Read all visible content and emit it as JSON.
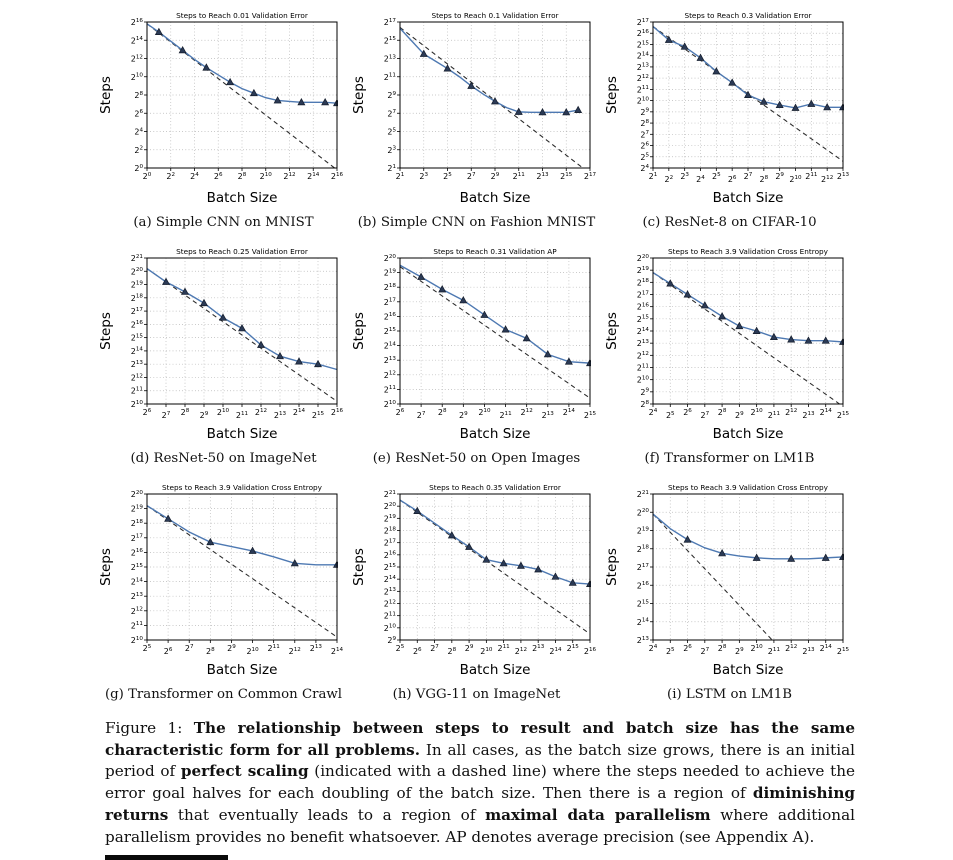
{
  "page": {
    "background": "#ffffff"
  },
  "colors": {
    "data_line": "#4e79b2",
    "marker_fill": "#2b3a55",
    "dashed_line": "#2a2a2a",
    "grid": "#999999",
    "text": "#000000"
  },
  "chart_data": [
    {
      "id": "a",
      "type": "line",
      "title": "Steps to Reach 0.01 Validation Error",
      "subcaption": "(a) Simple CNN on MNIST",
      "xlabel": "Batch Size",
      "ylabel": "Steps",
      "x_scale": "log2",
      "y_scale": "log2",
      "x_log2_range": [
        0,
        16
      ],
      "x_tick_step": 2,
      "y_log2_range": [
        0,
        16
      ],
      "y_tick_step": 2,
      "line_log2": [
        [
          0,
          15.8
        ],
        [
          1,
          14.9
        ],
        [
          2,
          13.9
        ],
        [
          3,
          12.9
        ],
        [
          4,
          11.9
        ],
        [
          5,
          11.0
        ],
        [
          6,
          10.2
        ],
        [
          7,
          9.4
        ],
        [
          8,
          8.7
        ],
        [
          9,
          8.2
        ],
        [
          10,
          7.7
        ],
        [
          11,
          7.4
        ],
        [
          12,
          7.3
        ],
        [
          13,
          7.2
        ],
        [
          14,
          7.2
        ],
        [
          15,
          7.2
        ],
        [
          16,
          7.1
        ]
      ],
      "markers_log2": [
        [
          1,
          14.9
        ],
        [
          3,
          12.9
        ],
        [
          5,
          11.0
        ],
        [
          7,
          9.4
        ],
        [
          9,
          8.2
        ],
        [
          11,
          7.4
        ],
        [
          13,
          7.2
        ],
        [
          15,
          7.2
        ],
        [
          16,
          7.1
        ]
      ],
      "perfect_scaling_log2": [
        [
          0,
          15.8
        ],
        [
          15.8,
          0
        ]
      ]
    },
    {
      "id": "b",
      "type": "line",
      "title": "Steps to Reach 0.1 Validation Error",
      "subcaption": "(b) Simple CNN on Fashion MNIST",
      "xlabel": "Batch Size",
      "ylabel": "Steps",
      "x_scale": "log2",
      "y_scale": "log2",
      "x_log2_range": [
        1,
        17
      ],
      "x_tick_step": 2,
      "y_log2_range": [
        1,
        17
      ],
      "y_tick_step": 2,
      "line_log2": [
        [
          1,
          16.3
        ],
        [
          2,
          14.9
        ],
        [
          3,
          13.5
        ],
        [
          4,
          12.7
        ],
        [
          5,
          11.9
        ],
        [
          6,
          11.0
        ],
        [
          7,
          10.0
        ],
        [
          8,
          9.1
        ],
        [
          9,
          8.3
        ],
        [
          10,
          7.6
        ],
        [
          11,
          7.15
        ],
        [
          12,
          7.1
        ],
        [
          13,
          7.1
        ],
        [
          14,
          7.1
        ],
        [
          15,
          7.1
        ],
        [
          16,
          7.35
        ]
      ],
      "markers_log2": [
        [
          3,
          13.5
        ],
        [
          5,
          11.9
        ],
        [
          7,
          10.0
        ],
        [
          9,
          8.3
        ],
        [
          11,
          7.15
        ],
        [
          13,
          7.1
        ],
        [
          15,
          7.1
        ],
        [
          16,
          7.35
        ]
      ],
      "perfect_scaling_log2": [
        [
          1,
          16.4
        ],
        [
          16.4,
          1
        ]
      ]
    },
    {
      "id": "c",
      "type": "line",
      "title": "Steps to Reach 0.3 Validation Error",
      "subcaption": "(c) ResNet-8 on CIFAR-10",
      "xlabel": "Batch Size",
      "ylabel": "Steps",
      "x_scale": "log2",
      "y_scale": "log2",
      "x_log2_range": [
        1,
        13
      ],
      "x_tick_step": 1,
      "y_log2_range": [
        4,
        17
      ],
      "y_tick_step": 1,
      "line_log2": [
        [
          1,
          16.6
        ],
        [
          2,
          15.4
        ],
        [
          3,
          14.8
        ],
        [
          4,
          13.8
        ],
        [
          5,
          12.6
        ],
        [
          6,
          11.6
        ],
        [
          7,
          10.5
        ],
        [
          8,
          9.9
        ],
        [
          9,
          9.6
        ],
        [
          10,
          9.35
        ],
        [
          11,
          9.7
        ],
        [
          12,
          9.4
        ],
        [
          13,
          9.4
        ]
      ],
      "markers_log2": [
        [
          2,
          15.4
        ],
        [
          3,
          14.8
        ],
        [
          4,
          13.8
        ],
        [
          5,
          12.6
        ],
        [
          6,
          11.6
        ],
        [
          7,
          10.5
        ],
        [
          8,
          9.9
        ],
        [
          9,
          9.6
        ],
        [
          10,
          9.35
        ],
        [
          11,
          9.7
        ],
        [
          12,
          9.4
        ],
        [
          13,
          9.4
        ]
      ],
      "perfect_scaling_log2": [
        [
          1,
          16.6
        ],
        [
          13,
          4.6
        ]
      ]
    },
    {
      "id": "d",
      "type": "line",
      "title": "Steps to Reach 0.25 Validation Error",
      "subcaption": "(d) ResNet-50 on ImageNet",
      "xlabel": "Batch Size",
      "ylabel": "Steps",
      "x_scale": "log2",
      "y_scale": "log2",
      "x_log2_range": [
        6,
        16
      ],
      "x_tick_step": 1,
      "y_log2_range": [
        10,
        21
      ],
      "y_tick_step": 1,
      "line_log2": [
        [
          6,
          20.2
        ],
        [
          7,
          19.2
        ],
        [
          8,
          18.45
        ],
        [
          9,
          17.6
        ],
        [
          10,
          16.5
        ],
        [
          11,
          15.7
        ],
        [
          12,
          14.45
        ],
        [
          13,
          13.6
        ],
        [
          14,
          13.2
        ],
        [
          15,
          13.0
        ],
        [
          16,
          12.6
        ]
      ],
      "markers_log2": [
        [
          7,
          19.2
        ],
        [
          8,
          18.45
        ],
        [
          9,
          17.6
        ],
        [
          10,
          16.5
        ],
        [
          11,
          15.7
        ],
        [
          12,
          14.45
        ],
        [
          13,
          13.6
        ],
        [
          14,
          13.2
        ],
        [
          15,
          13.0
        ]
      ],
      "perfect_scaling_log2": [
        [
          6,
          20.2
        ],
        [
          16,
          10.2
        ]
      ]
    },
    {
      "id": "e",
      "type": "line",
      "title": "Steps to Reach 0.31 Validation AP",
      "subcaption": "(e) ResNet-50 on Open Images",
      "xlabel": "Batch Size",
      "ylabel": "Steps",
      "x_scale": "log2",
      "y_scale": "log2",
      "x_log2_range": [
        6,
        15
      ],
      "x_tick_step": 1,
      "y_log2_range": [
        10,
        20
      ],
      "y_tick_step": 1,
      "line_log2": [
        [
          6,
          19.5
        ],
        [
          7,
          18.7
        ],
        [
          8,
          17.85
        ],
        [
          9,
          17.1
        ],
        [
          10,
          16.1
        ],
        [
          11,
          15.1
        ],
        [
          12,
          14.5
        ],
        [
          13,
          13.4
        ],
        [
          14,
          12.9
        ],
        [
          15,
          12.8
        ]
      ],
      "markers_log2": [
        [
          7,
          18.7
        ],
        [
          8,
          17.85
        ],
        [
          9,
          17.1
        ],
        [
          10,
          16.1
        ],
        [
          11,
          15.1
        ],
        [
          12,
          14.5
        ],
        [
          13,
          13.4
        ],
        [
          14,
          12.9
        ],
        [
          15,
          12.8
        ]
      ],
      "perfect_scaling_log2": [
        [
          6,
          19.4
        ],
        [
          15,
          10.4
        ]
      ]
    },
    {
      "id": "f",
      "type": "line",
      "title": "Steps to Reach 3.9 Validation Cross Entropy",
      "subcaption": "(f) Transformer on LM1B",
      "xlabel": "Batch Size",
      "ylabel": "Steps",
      "x_scale": "log2",
      "y_scale": "log2",
      "x_log2_range": [
        4,
        15
      ],
      "x_tick_step": 1,
      "y_log2_range": [
        8,
        20
      ],
      "y_tick_step": 1,
      "line_log2": [
        [
          4,
          18.8
        ],
        [
          5,
          17.9
        ],
        [
          6,
          17.0
        ],
        [
          7,
          16.1
        ],
        [
          8,
          15.2
        ],
        [
          9,
          14.4
        ],
        [
          10,
          14.0
        ],
        [
          11,
          13.5
        ],
        [
          12,
          13.3
        ],
        [
          13,
          13.2
        ],
        [
          14,
          13.2
        ],
        [
          15,
          13.1
        ]
      ],
      "markers_log2": [
        [
          5,
          17.9
        ],
        [
          6,
          17.0
        ],
        [
          7,
          16.1
        ],
        [
          8,
          15.2
        ],
        [
          9,
          14.4
        ],
        [
          10,
          14.0
        ],
        [
          11,
          13.5
        ],
        [
          12,
          13.3
        ],
        [
          13,
          13.2
        ],
        [
          14,
          13.2
        ],
        [
          15,
          13.1
        ]
      ],
      "perfect_scaling_log2": [
        [
          4,
          18.8
        ],
        [
          14.8,
          8
        ]
      ]
    },
    {
      "id": "g",
      "type": "line",
      "title": "Steps to Reach 3.9 Validation Cross Entropy",
      "subcaption": "(g) Transformer on Common Crawl",
      "xlabel": "Batch Size",
      "ylabel": "Steps",
      "x_scale": "log2",
      "y_scale": "log2",
      "x_log2_range": [
        5,
        14
      ],
      "x_tick_step": 1,
      "y_log2_range": [
        10,
        20
      ],
      "y_tick_step": 1,
      "line_log2": [
        [
          5,
          19.2
        ],
        [
          6,
          18.3
        ],
        [
          7,
          17.4
        ],
        [
          8,
          16.7
        ],
        [
          9,
          16.4
        ],
        [
          10,
          16.1
        ],
        [
          11,
          15.7
        ],
        [
          12,
          15.25
        ],
        [
          13,
          15.15
        ],
        [
          14,
          15.15
        ]
      ],
      "markers_log2": [
        [
          6,
          18.3
        ],
        [
          8,
          16.7
        ],
        [
          10,
          16.1
        ],
        [
          12,
          15.25
        ],
        [
          14,
          15.15
        ]
      ],
      "perfect_scaling_log2": [
        [
          5,
          19.2
        ],
        [
          14,
          10.2
        ]
      ]
    },
    {
      "id": "h",
      "type": "line",
      "title": "Steps to Reach 0.35 Validation Error",
      "subcaption": "(h) VGG-11 on ImageNet",
      "xlabel": "Batch Size",
      "ylabel": "Steps",
      "x_scale": "log2",
      "y_scale": "log2",
      "x_log2_range": [
        5,
        16
      ],
      "x_tick_step": 1,
      "y_log2_range": [
        9,
        21
      ],
      "y_tick_step": 1,
      "line_log2": [
        [
          5,
          20.5
        ],
        [
          6,
          19.6
        ],
        [
          7,
          18.6
        ],
        [
          8,
          17.6
        ],
        [
          9,
          16.65
        ],
        [
          10,
          15.6
        ],
        [
          11,
          15.3
        ],
        [
          12,
          15.1
        ],
        [
          13,
          14.8
        ],
        [
          14,
          14.2
        ],
        [
          15,
          13.7
        ],
        [
          16,
          13.6
        ]
      ],
      "markers_log2": [
        [
          6,
          19.6
        ],
        [
          8,
          17.6
        ],
        [
          9,
          16.65
        ],
        [
          10,
          15.6
        ],
        [
          11,
          15.3
        ],
        [
          12,
          15.1
        ],
        [
          13,
          14.8
        ],
        [
          14,
          14.2
        ],
        [
          15,
          13.7
        ],
        [
          16,
          13.6
        ]
      ],
      "perfect_scaling_log2": [
        [
          5,
          20.5
        ],
        [
          16,
          9.5
        ]
      ]
    },
    {
      "id": "i",
      "type": "line",
      "title": "Steps to Reach 3.9 Validation Cross Entropy",
      "subcaption": "(i) LSTM on LM1B",
      "xlabel": "Batch Size",
      "ylabel": "Steps",
      "x_scale": "log2",
      "y_scale": "log2",
      "x_log2_range": [
        4,
        15
      ],
      "x_tick_step": 1,
      "y_log2_range": [
        13,
        21
      ],
      "y_tick_step": 1,
      "line_log2": [
        [
          4,
          19.9
        ],
        [
          5,
          19.1
        ],
        [
          6,
          18.5
        ],
        [
          7,
          18.05
        ],
        [
          8,
          17.75
        ],
        [
          9,
          17.6
        ],
        [
          10,
          17.5
        ],
        [
          11,
          17.45
        ],
        [
          12,
          17.45
        ],
        [
          13,
          17.45
        ],
        [
          14,
          17.5
        ],
        [
          15,
          17.55
        ]
      ],
      "markers_log2": [
        [
          6,
          18.5
        ],
        [
          8,
          17.75
        ],
        [
          10,
          17.5
        ],
        [
          12,
          17.45
        ],
        [
          14,
          17.5
        ],
        [
          15,
          17.55
        ]
      ],
      "perfect_scaling_log2": [
        [
          4,
          19.9
        ],
        [
          10.9,
          13
        ]
      ]
    }
  ],
  "figure_caption": {
    "runs": [
      {
        "text": "Figure 1: ",
        "bold": false
      },
      {
        "text": "The relationship between steps to result and batch size has the same characteristic form for all problems.",
        "bold": true
      },
      {
        "text": " In all cases, as the batch size grows, there is an initial period of ",
        "bold": false
      },
      {
        "text": "perfect scaling",
        "bold": true
      },
      {
        "text": " (indicated with a dashed line) where the steps needed to achieve the error goal halves for each doubling of the batch size. Then there is a region of ",
        "bold": false
      },
      {
        "text": "diminishing returns",
        "bold": true
      },
      {
        "text": " that eventually leads to a region of ",
        "bold": false
      },
      {
        "text": "maximal data parallelism",
        "bold": true
      },
      {
        "text": " where additional parallelism provides no benefit whatsoever. AP denotes average precision (see Appendix A).",
        "bold": false
      }
    ]
  }
}
